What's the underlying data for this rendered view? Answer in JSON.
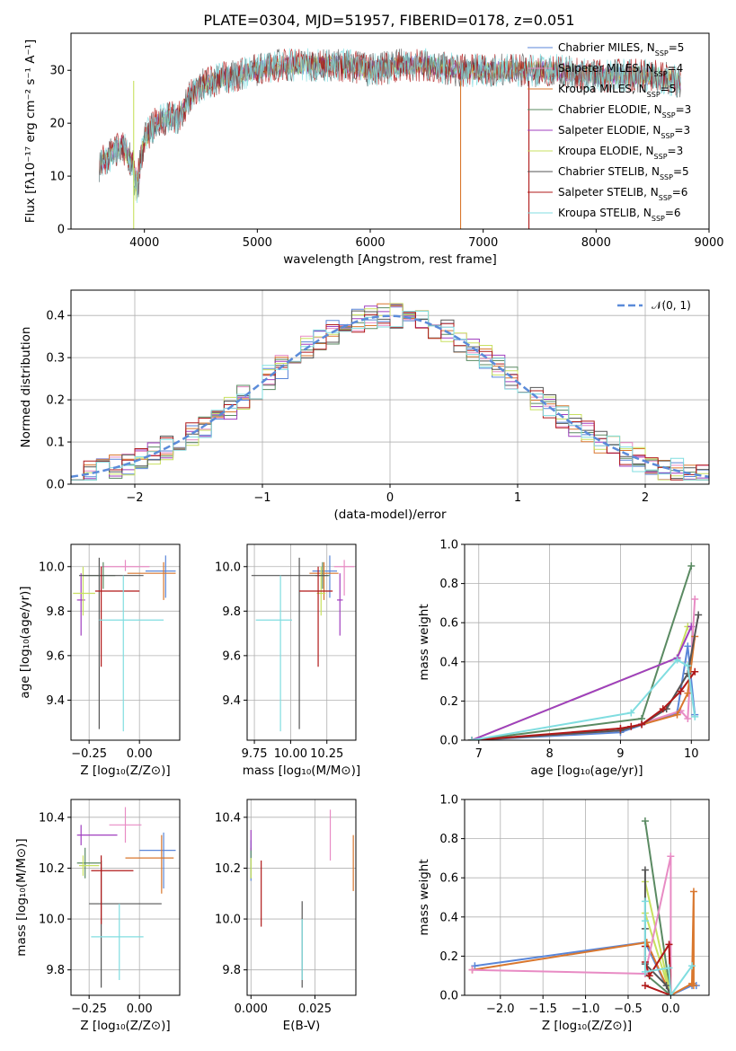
{
  "figure_title": "PLATE=0304, MJD=51957, FIBERID=0178, z=0.051",
  "colors": {
    "Chabrier MILES": "#5a86d8",
    "Salpeter MILES": "#e88bc4",
    "Kroupa MILES": "#d9772e",
    "Chabrier ELODIE": "#5a8a62",
    "Salpeter ELODIE": "#a03fbf",
    "Kroupa ELODIE": "#c8e060",
    "Chabrier STELIB": "#555555",
    "Salpeter STELIB": "#b01818",
    "Kroupa STELIB": "#80dde0",
    "normal": "#5b8bd9"
  },
  "chart_data": [
    {
      "id": "spectrum",
      "type": "line",
      "title": "PLATE=0304, MJD=51957, FIBERID=0178, z=0.051",
      "xlabel": "wavelength [Angstrom, rest frame]",
      "ylabel": "Flux [fλ10⁻¹⁷ erg cm⁻² s⁻¹ A⁻¹]",
      "xlim": [
        3350,
        9000
      ],
      "ylim": [
        0,
        37
      ],
      "xticks": [
        "4000",
        "5000",
        "6000",
        "7000",
        "8000",
        "9000"
      ],
      "yticks": [
        "0",
        "10",
        "20",
        "30"
      ],
      "continuum": {
        "x": [
          3600,
          3700,
          3800,
          3900,
          3950,
          4000,
          4100,
          4200,
          4300,
          4400,
          4500,
          4600,
          4800,
          5000,
          5200,
          5500,
          5800,
          6000,
          6300,
          6500,
          6800,
          7000,
          7300,
          7600,
          8000,
          8300,
          8500,
          8700
        ],
        "y": [
          12,
          14,
          16,
          12,
          11,
          17,
          20,
          21,
          21,
          25,
          27,
          28,
          29,
          30,
          31,
          31,
          31,
          30,
          31,
          31,
          30,
          30,
          30,
          30,
          29,
          29,
          29,
          28
        ]
      },
      "legend": [
        "Chabrier MILES, N<tspan font-size='8' baseline-shift='sub'>SSP</tspan>=5",
        "Salpeter MILES, N<tspan font-size='8' baseline-shift='sub'>SSP</tspan>=4",
        "Kroupa MILES, N<tspan font-size='8' baseline-shift='sub'>SSP</tspan>=5",
        "Chabrier ELODIE, N<tspan font-size='8' baseline-shift='sub'>SSP</tspan>=3",
        "Salpeter ELODIE, N<tspan font-size='8' baseline-shift='sub'>SSP</tspan>=3",
        "Kroupa ELODIE, N<tspan font-size='8' baseline-shift='sub'>SSP</tspan>=3",
        "Chabrier STELIB, N<tspan font-size='8' baseline-shift='sub'>SSP</tspan>=5",
        "Salpeter STELIB, N<tspan font-size='8' baseline-shift='sub'>SSP</tspan>=6",
        "Kroupa STELIB, N<tspan font-size='8' baseline-shift='sub'>SSP</tspan>=6"
      ],
      "legend_placement": "right"
    },
    {
      "id": "residuals",
      "type": "histogram",
      "xlabel": "(data-model)/error",
      "ylabel": "Normed distribution",
      "xlim": [
        -2.5,
        2.5
      ],
      "ylim": [
        0,
        0.46
      ],
      "xticks": [
        "−2",
        "−1",
        "0",
        "1",
        "2"
      ],
      "yticks": [
        "0.0",
        "0.1",
        "0.2",
        "0.3",
        "0.4"
      ],
      "legend": [
        "𝒩(0, 1)"
      ],
      "legend_placement": "top-right",
      "grid": true
    },
    {
      "id": "age_vs_Z",
      "type": "errorbar",
      "xlabel": "Z [log₁₀(Z/Z⊙)]",
      "ylabel": "age  [log₁₀(age/yr)]",
      "xlim": [
        -0.34,
        0.2
      ],
      "ylim": [
        9.22,
        10.1
      ],
      "xticks": [
        "−0.25",
        "0.00"
      ],
      "yticks": [
        "9.4",
        "9.6",
        "9.8",
        "10.0"
      ],
      "points": [
        {
          "m": "Chabrier MILES",
          "x": 0.13,
          "y": 9.98,
          "xl": 0.1,
          "xh": 0.05,
          "yl": 0.12,
          "yh": 0.07
        },
        {
          "m": "Salpeter MILES",
          "x": -0.07,
          "y": 10.0,
          "xl": 0.12,
          "xh": 0.12,
          "yl": 0.02,
          "yh": 0.03
        },
        {
          "m": "Kroupa MILES",
          "x": 0.12,
          "y": 9.97,
          "xl": 0.18,
          "xh": 0.06,
          "yl": 0.12,
          "yh": 0.05
        },
        {
          "m": "Chabrier ELODIE",
          "x": -0.18,
          "y": 9.96,
          "xl": 0.1,
          "xh": 0.06,
          "yl": 0.06,
          "yh": 0.06
        },
        {
          "m": "Salpeter ELODIE",
          "x": -0.29,
          "y": 9.85,
          "xl": 0.02,
          "xh": 0.02,
          "yl": 0.16,
          "yh": 0.12
        },
        {
          "m": "Kroupa ELODIE",
          "x": -0.28,
          "y": 9.88,
          "xl": 0.05,
          "xh": 0.06,
          "yl": 0.1,
          "yh": 0.12
        },
        {
          "m": "Chabrier STELIB",
          "x": -0.2,
          "y": 9.96,
          "xl": 0.1,
          "xh": 0.22,
          "yl": 0.69,
          "yh": 0.08
        },
        {
          "m": "Salpeter STELIB",
          "x": -0.19,
          "y": 9.89,
          "xl": 0.03,
          "xh": 0.19,
          "yl": 0.34,
          "yh": 0.11
        },
        {
          "m": "Kroupa STELIB",
          "x": -0.08,
          "y": 9.76,
          "xl": 0.12,
          "xh": 0.2,
          "yl": 0.5,
          "yh": 0.2
        }
      ]
    },
    {
      "id": "age_vs_mass",
      "type": "errorbar",
      "xlabel": "mass [log₁₀(M/M⊙)]",
      "ylabel": "",
      "xlim": [
        9.7,
        10.45
      ],
      "ylim": [
        9.22,
        10.1
      ],
      "xticks": [
        "9.75",
        "10.00",
        "10.25"
      ],
      "yticks": [
        "9.4",
        "9.6",
        "9.8",
        "10.0"
      ],
      "points": [
        {
          "m": "Chabrier MILES",
          "x": 10.27,
          "y": 9.98,
          "xl": 0.12,
          "xh": 0.05,
          "yl": 0.12,
          "yh": 0.07
        },
        {
          "m": "Salpeter MILES",
          "x": 10.37,
          "y": 10.0,
          "xl": 0.07,
          "xh": 0.07,
          "yl": 0.13,
          "yh": 0.03
        },
        {
          "m": "Kroupa MILES",
          "x": 10.23,
          "y": 9.97,
          "xl": 0.1,
          "xh": 0.1,
          "yl": 0.12,
          "yh": 0.05
        },
        {
          "m": "Chabrier ELODIE",
          "x": 10.22,
          "y": 9.96,
          "xl": 0.05,
          "xh": 0.05,
          "yl": 0.06,
          "yh": 0.06
        },
        {
          "m": "Salpeter ELODIE",
          "x": 10.34,
          "y": 9.85,
          "xl": 0.02,
          "xh": 0.02,
          "yl": 0.16,
          "yh": 0.12
        },
        {
          "m": "Kroupa ELODIE",
          "x": 10.21,
          "y": 9.88,
          "xl": 0.03,
          "xh": 0.03,
          "yl": 0.1,
          "yh": 0.12
        },
        {
          "m": "Chabrier STELIB",
          "x": 10.06,
          "y": 9.96,
          "xl": 0.33,
          "xh": 0.2,
          "yl": 0.69,
          "yh": 0.08
        },
        {
          "m": "Salpeter STELIB",
          "x": 10.19,
          "y": 9.89,
          "xl": 0.13,
          "xh": 0.1,
          "yl": 0.34,
          "yh": 0.11
        },
        {
          "m": "Kroupa STELIB",
          "x": 9.93,
          "y": 9.76,
          "xl": 0.17,
          "xh": 0.08,
          "yl": 0.5,
          "yh": 0.2
        }
      ]
    },
    {
      "id": "weight_vs_age",
      "type": "line",
      "xlabel": "age  [log₁₀(age/yr)]",
      "ylabel": "mass weight",
      "xlim": [
        6.8,
        10.25
      ],
      "ylim": [
        0,
        1
      ],
      "xticks": [
        "7",
        "8",
        "9",
        "10"
      ],
      "yticks": [
        "0.0",
        "0.2",
        "0.4",
        "0.6",
        "0.8",
        "1.0"
      ],
      "series": [
        {
          "m": "Chabrier ELODIE",
          "x": [
            6.9,
            9.3,
            10.0
          ],
          "y": [
            0.0,
            0.11,
            0.89
          ]
        },
        {
          "m": "Kroupa ELODIE",
          "x": [
            6.9,
            9.8,
            9.95
          ],
          "y": [
            0.0,
            0.42,
            0.58
          ]
        },
        {
          "m": "Salpeter ELODIE",
          "x": [
            6.9,
            9.8,
            10.0
          ],
          "y": [
            0.0,
            0.42,
            0.58
          ]
        },
        {
          "m": "Chabrier MILES",
          "x": [
            6.9,
            9.0,
            9.8,
            9.95,
            10.05
          ],
          "y": [
            0.0,
            0.04,
            0.14,
            0.48,
            0.13
          ]
        },
        {
          "m": "Salpeter MILES",
          "x": [
            6.9,
            9.0,
            9.85,
            9.95,
            10.05
          ],
          "y": [
            0.0,
            0.05,
            0.15,
            0.11,
            0.72
          ]
        },
        {
          "m": "Kroupa MILES",
          "x": [
            6.9,
            9.0,
            9.8,
            9.95,
            10.05
          ],
          "y": [
            0.0,
            0.05,
            0.13,
            0.24,
            0.53
          ]
        },
        {
          "m": "Chabrier STELIB",
          "x": [
            6.9,
            9.0,
            9.3,
            9.65,
            9.95,
            10.1
          ],
          "y": [
            0.0,
            0.05,
            0.08,
            0.16,
            0.34,
            0.64
          ]
        },
        {
          "m": "Salpeter STELIB",
          "x": [
            6.9,
            9.0,
            9.15,
            9.3,
            9.6,
            9.85,
            10.05
          ],
          "y": [
            0.0,
            0.06,
            0.07,
            0.08,
            0.16,
            0.25,
            0.35
          ]
        },
        {
          "m": "Kroupa STELIB",
          "x": [
            6.9,
            9.15,
            9.8,
            9.95,
            10.05
          ],
          "y": [
            0.0,
            0.14,
            0.41,
            0.38,
            0.12
          ]
        }
      ]
    },
    {
      "id": "mass_vs_Z",
      "type": "errorbar",
      "xlabel": "Z [log₁₀(Z/Z⊙)]",
      "ylabel": "mass [log₁₀(M/M⊙)]",
      "xlim": [
        -0.34,
        0.2
      ],
      "ylim": [
        9.7,
        10.47
      ],
      "xticks": [
        "−0.25",
        "0.00"
      ],
      "yticks": [
        "9.8",
        "10.0",
        "10.2",
        "10.4"
      ],
      "points": [
        {
          "m": "Chabrier MILES",
          "x": 0.12,
          "y": 10.27,
          "xl": 0.12,
          "xh": 0.06,
          "yl": 0.15,
          "yh": 0.07
        },
        {
          "m": "Salpeter MILES",
          "x": -0.07,
          "y": 10.37,
          "xl": 0.08,
          "xh": 0.08,
          "yl": 0.07,
          "yh": 0.07
        },
        {
          "m": "Kroupa MILES",
          "x": 0.11,
          "y": 10.24,
          "xl": 0.18,
          "xh": 0.06,
          "yl": 0.14,
          "yh": 0.09
        },
        {
          "m": "Chabrier ELODIE",
          "x": -0.27,
          "y": 10.22,
          "xl": 0.04,
          "xh": 0.08,
          "yl": 0.06,
          "yh": 0.06
        },
        {
          "m": "Salpeter ELODIE",
          "x": -0.29,
          "y": 10.33,
          "xl": 0.02,
          "xh": 0.18,
          "yl": 0.04,
          "yh": 0.04
        },
        {
          "m": "Kroupa ELODIE",
          "x": -0.28,
          "y": 10.21,
          "xl": 0.02,
          "xh": 0.08,
          "yl": 0.04,
          "yh": 0.04
        },
        {
          "m": "Chabrier STELIB",
          "x": -0.19,
          "y": 10.06,
          "xl": 0.06,
          "xh": 0.3,
          "yl": 0.33,
          "yh": 0.17
        },
        {
          "m": "Salpeter STELIB",
          "x": -0.19,
          "y": 10.19,
          "xl": 0.05,
          "xh": 0.16,
          "yl": 0.21,
          "yh": 0.06
        },
        {
          "m": "Kroupa STELIB",
          "x": -0.1,
          "y": 9.93,
          "xl": 0.14,
          "xh": 0.12,
          "yl": 0.17,
          "yh": 0.13
        }
      ]
    },
    {
      "id": "mass_vs_ebv",
      "type": "errorbar",
      "xlabel": "E(B-V)",
      "ylabel": "",
      "xlim": [
        -0.0015,
        0.041
      ],
      "ylim": [
        9.7,
        10.47
      ],
      "xticks": [
        "0.000",
        "0.025"
      ],
      "yticks": [
        "9.8",
        "10.0",
        "10.2",
        "10.4"
      ],
      "points": [
        {
          "m": "Chabrier MILES",
          "x": 0.0,
          "y": 10.23,
          "xl": 0,
          "xh": 0,
          "yl": 0.08,
          "yh": 0.08
        },
        {
          "m": "Salpeter MILES",
          "x": 0.031,
          "y": 10.33,
          "xl": 0,
          "xh": 0,
          "yl": 0.1,
          "yh": 0.1
        },
        {
          "m": "Kroupa MILES",
          "x": 0.04,
          "y": 10.22,
          "xl": 0,
          "xh": 0,
          "yl": 0.11,
          "yh": 0.11
        },
        {
          "m": "Chabrier ELODIE",
          "x": 0.0,
          "y": 10.22,
          "xl": 0,
          "xh": 0,
          "yl": 0.06,
          "yh": 0.06
        },
        {
          "m": "Salpeter ELODIE",
          "x": 0.0,
          "y": 10.31,
          "xl": 0,
          "xh": 0,
          "yl": 0.04,
          "yh": 0.04
        },
        {
          "m": "Kroupa ELODIE",
          "x": 0.0,
          "y": 10.2,
          "xl": 0,
          "xh": 0,
          "yl": 0.04,
          "yh": 0.04
        },
        {
          "m": "Chabrier STELIB",
          "x": 0.02,
          "y": 9.9,
          "xl": 0,
          "xh": 0,
          "yl": 0.17,
          "yh": 0.17
        },
        {
          "m": "Salpeter STELIB",
          "x": 0.004,
          "y": 10.1,
          "xl": 0,
          "xh": 0,
          "yl": 0.13,
          "yh": 0.13
        },
        {
          "m": "Kroupa STELIB",
          "x": 0.02,
          "y": 9.88,
          "xl": 0,
          "xh": 0,
          "yl": 0.12,
          "yh": 0.12
        }
      ]
    },
    {
      "id": "weight_vs_Z",
      "type": "line",
      "xlabel": "Z [log₁₀(Z/Z⊙)]",
      "ylabel": "mass weight",
      "xlim": [
        -2.42,
        0.45
      ],
      "ylim": [
        0,
        1
      ],
      "xticks": [
        "−2.0",
        "−1.5",
        "−1.0",
        "−0.5",
        "0.0"
      ],
      "yticks": [
        "0.0",
        "0.2",
        "0.4",
        "0.6",
        "0.8",
        "1.0"
      ],
      "series": [
        {
          "m": "Chabrier ELODIE",
          "x": [
            -0.3,
            0.0,
            -0.3
          ],
          "y": [
            0.89,
            0.0,
            0.11
          ]
        },
        {
          "m": "Kroupa ELODIE",
          "x": [
            -0.3,
            0.0,
            -0.3
          ],
          "y": [
            0.58,
            0.0,
            0.42
          ]
        },
        {
          "m": "Chabrier MILES",
          "x": [
            -2.3,
            -0.3,
            0.0,
            0.25,
            0.3
          ],
          "y": [
            0.15,
            0.27,
            0.0,
            0.05,
            0.05
          ]
        },
        {
          "m": "Kroupa MILES",
          "x": [
            -2.33,
            -0.28,
            0.0,
            0.25,
            0.27,
            0.27
          ],
          "y": [
            0.13,
            0.27,
            0.0,
            0.06,
            0.53,
            0.05
          ]
        },
        {
          "m": "Salpeter MILES",
          "x": [
            -2.33,
            -0.3,
            0.0,
            0.0
          ],
          "y": [
            0.13,
            0.11,
            0.71,
            0.0
          ]
        },
        {
          "m": "Chabrier STELIB",
          "x": [
            -0.3,
            -0.3,
            -0.3,
            -0.05,
            0.0
          ],
          "y": [
            0.64,
            0.34,
            0.16,
            0.05,
            0.0
          ]
        },
        {
          "m": "Salpeter STELIB",
          "x": [
            -0.3,
            -0.3,
            -0.25,
            -0.02,
            0.0,
            -0.3
          ],
          "y": [
            0.25,
            0.17,
            0.1,
            0.26,
            0.0,
            0.05
          ]
        },
        {
          "m": "Kroupa STELIB",
          "x": [
            -0.3,
            -0.3,
            -0.3,
            -0.02,
            0.0,
            0.25
          ],
          "y": [
            0.48,
            0.38,
            0.12,
            0.14,
            0.0,
            0.15
          ]
        }
      ]
    }
  ]
}
